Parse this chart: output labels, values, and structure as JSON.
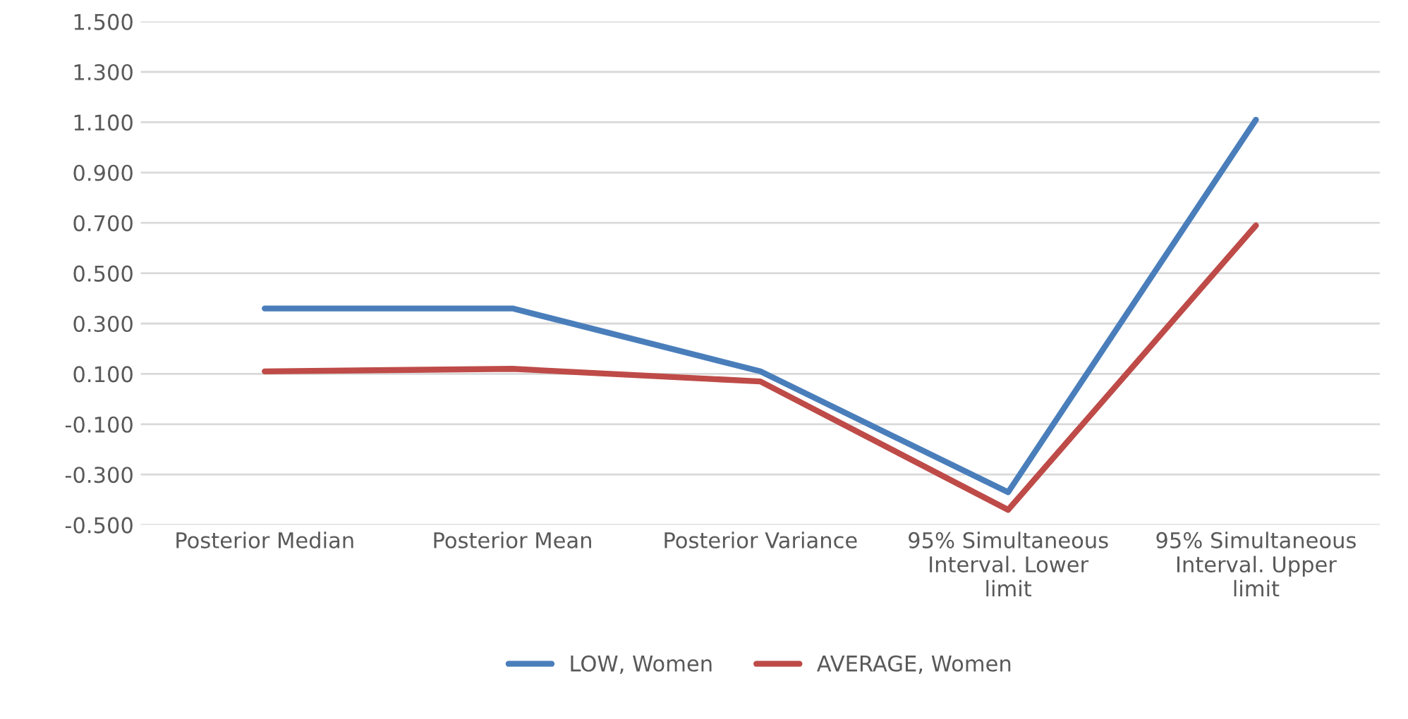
{
  "chart_data": {
    "type": "line",
    "categories": [
      "Posterior Median",
      "Posterior Mean",
      "Posterior Variance",
      "95% Simultaneous Interval. Lower limit",
      "95% Simultaneous Interval. Upper limit"
    ],
    "series": [
      {
        "name": "LOW, Women",
        "color": "#4a7ebb",
        "values": [
          0.36,
          0.36,
          0.11,
          -0.37,
          1.11
        ]
      },
      {
        "name": "AVERAGE, Women",
        "color": "#be4b48",
        "values": [
          0.11,
          0.12,
          0.07,
          -0.44,
          0.69
        ]
      }
    ],
    "ylim": [
      -0.5,
      1.5
    ],
    "yticks": [
      {
        "value": -0.5,
        "label": "-0.500"
      },
      {
        "value": -0.3,
        "label": "-0.300"
      },
      {
        "value": -0.1,
        "label": "-0.100"
      },
      {
        "value": 0.1,
        "label": "0.100"
      },
      {
        "value": 0.3,
        "label": "0.300"
      },
      {
        "value": 0.5,
        "label": "0.500"
      },
      {
        "value": 0.7,
        "label": "0.700"
      },
      {
        "value": 0.9,
        "label": "0.900"
      },
      {
        "value": 1.1,
        "label": "1.100"
      },
      {
        "value": 1.3,
        "label": "1.300"
      },
      {
        "value": 1.5,
        "label": "1.500"
      }
    ],
    "grid": "y",
    "legend": "bottom",
    "marker": "none",
    "line_style": "solid"
  }
}
